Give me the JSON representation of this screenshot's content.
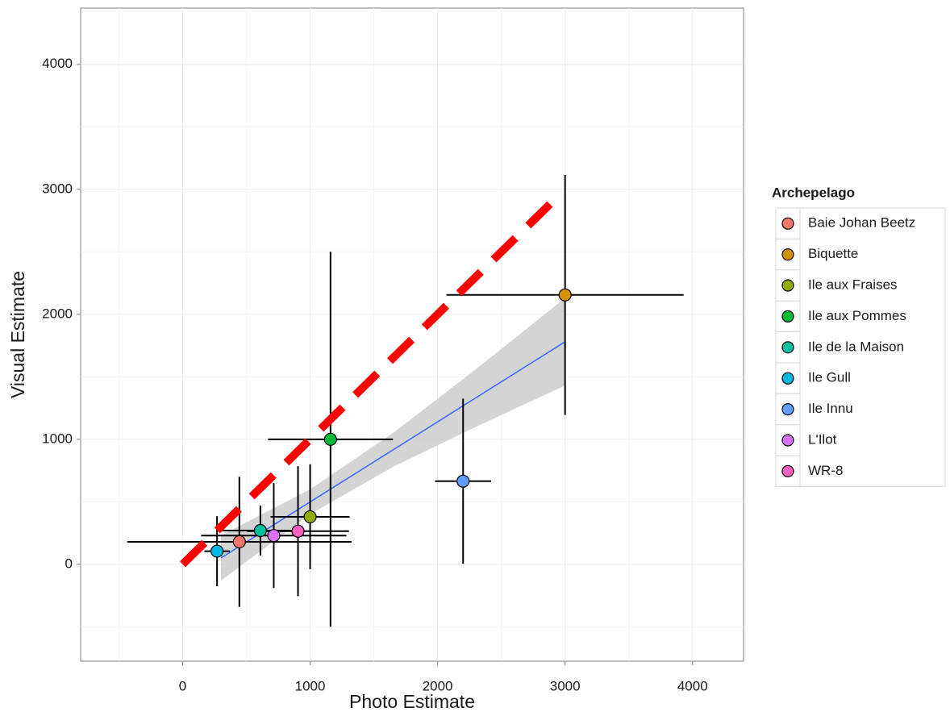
{
  "chart_data": {
    "type": "scatter",
    "x_label": "Photo Estimate",
    "y_label": "Visual Estimate",
    "legend_title": "Archepelago",
    "legend_position": "right",
    "grid": true,
    "xlim": [
      -800,
      4400
    ],
    "ylim": [
      -775,
      4450
    ],
    "xticks": [
      0,
      1000,
      2000,
      3000,
      4000
    ],
    "yticks": [
      0,
      1000,
      2000,
      3000,
      4000
    ],
    "series": [
      {
        "name": "Baie Johan Beetz",
        "color": "#F8766D",
        "x": [
          445
        ],
        "y": [
          180
        ],
        "xerr": [
          880
        ],
        "yerr": [
          520
        ]
      },
      {
        "name": "Biquette",
        "color": "#D39200",
        "x": [
          3000
        ],
        "y": [
          2155
        ],
        "xerr": [
          930
        ],
        "yerr": [
          960
        ]
      },
      {
        "name": "Ile aux Fraises",
        "color": "#93AA00",
        "x": [
          1000
        ],
        "y": [
          380
        ],
        "xerr": [
          310
        ],
        "yerr": [
          420
        ]
      },
      {
        "name": "Ile aux Pommes",
        "color": "#00BA38",
        "x": [
          1160
        ],
        "y": [
          1000
        ],
        "xerr": [
          490
        ],
        "yerr": [
          1500
        ]
      },
      {
        "name": "Ile de la Maison",
        "color": "#00C19F",
        "x": [
          610
        ],
        "y": [
          270
        ],
        "xerr": [
          330
        ],
        "yerr": [
          200
        ]
      },
      {
        "name": "Ile Gull",
        "color": "#00B9E3",
        "x": [
          270
        ],
        "y": [
          105
        ],
        "xerr": [
          100
        ],
        "yerr": [
          280
        ]
      },
      {
        "name": "Ile Innu",
        "color": "#619CFF",
        "x": [
          2200
        ],
        "y": [
          665
        ],
        "xerr": [
          220
        ],
        "yerr": [
          660
        ]
      },
      {
        "name": "L'Ilot",
        "color": "#DB72FB",
        "x": [
          715
        ],
        "y": [
          230
        ],
        "xerr": [
          570
        ],
        "yerr": [
          420
        ]
      },
      {
        "name": "WR-8",
        "color": "#FF61C3",
        "x": [
          905
        ],
        "y": [
          265
        ],
        "xerr": [
          400
        ],
        "yerr": [
          520
        ]
      }
    ],
    "fit": {
      "color": "#3366FF",
      "band_color": "#cccccc",
      "x": [
        300,
        1000,
        1650,
        2300,
        3000
      ],
      "y": [
        50,
        499,
        915,
        1332,
        1780
      ],
      "lower": [
        -130,
        400,
        780,
        1100,
        1430
      ],
      "upper": [
        230,
        600,
        1050,
        1560,
        2130
      ]
    },
    "reference_line": {
      "color": "#ff0000",
      "x": [
        0,
        2950
      ],
      "y": [
        0,
        2950
      ]
    }
  }
}
